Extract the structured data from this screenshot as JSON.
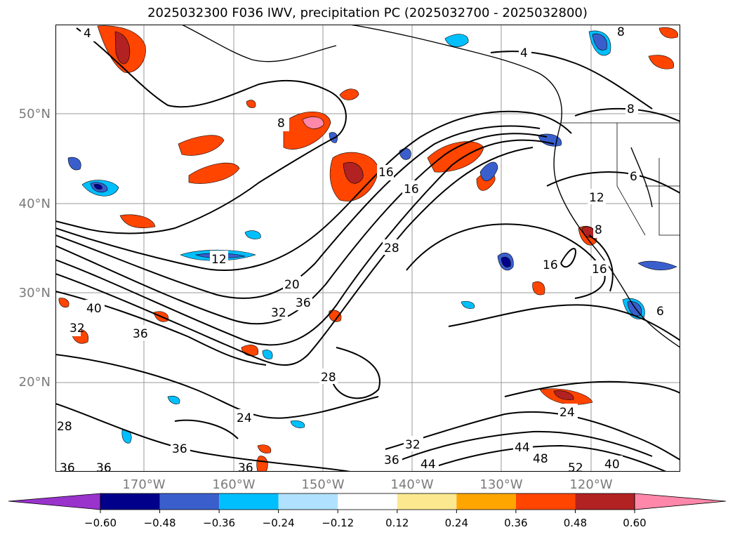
{
  "title": "2025032300 F036 IWV, precipitation PC (2025032700 - 2025032800)",
  "lat_labels": [
    "50°N",
    "40°N",
    "30°N",
    "20°N"
  ],
  "lon_labels": [
    "170°W",
    "160°W",
    "150°W",
    "140°W",
    "130°W",
    "120°W"
  ],
  "contour_labels": [
    "4",
    "8",
    "8",
    "4",
    "8",
    "16",
    "16",
    "12",
    "6",
    "12",
    "8",
    "16",
    "16",
    "28",
    "20",
    "32",
    "36",
    "40",
    "36",
    "32",
    "28",
    "24",
    "36",
    "36",
    "36",
    "36",
    "28",
    "32",
    "36",
    "44",
    "44",
    "48",
    "52",
    "40",
    "24",
    "6"
  ],
  "colorbar": {
    "ticks": [
      "−0.60",
      "−0.48",
      "−0.36",
      "−0.24",
      "−0.12",
      "0.12",
      "0.24",
      "0.36",
      "0.48",
      "0.60"
    ],
    "colors": [
      "#9933cc",
      "#00008b",
      "#3a5fcd",
      "#00bfff",
      "#b0e2ff",
      "#ffffff",
      "#fce98f",
      "#ffa500",
      "#ff4500",
      "#b22222",
      "#ff88aa"
    ]
  }
}
